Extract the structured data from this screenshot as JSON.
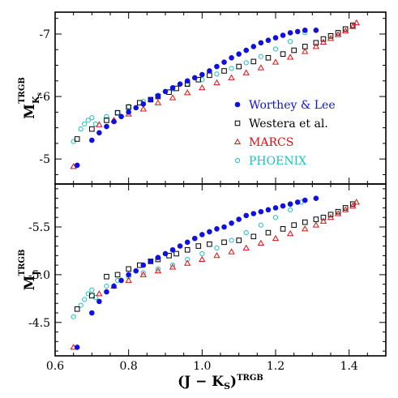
{
  "figure": {
    "xaxis_title": "(J − K",
    "xaxis_sub": "S",
    "xaxis_close": ")",
    "xaxis_sup": "TRGB"
  },
  "chart_data": [
    {
      "type": "scatter",
      "panel": "top",
      "ylabel_main": "M",
      "ylabel_sup": "TRGB",
      "ylabel_sub": "K",
      "ylabel_subsub": "s",
      "xlim": [
        0.6,
        1.5
      ],
      "ylim": [
        -4.6,
        -7.35
      ],
      "y_inverted": true,
      "xticks": [
        0.6,
        0.8,
        1.0,
        1.2,
        1.4
      ],
      "yticks": [
        -5,
        -6,
        -7
      ],
      "ytick_labels": [
        "-5",
        "-6",
        "-7"
      ],
      "grid": false,
      "legend_position": "lower-right",
      "series": [
        {
          "name": "Worthey & Lee",
          "marker": "filled-circle",
          "color": "#1010e0",
          "x": [
            0.66,
            0.7,
            0.72,
            0.74,
            0.76,
            0.78,
            0.8,
            0.82,
            0.84,
            0.86,
            0.88,
            0.9,
            0.92,
            0.94,
            0.96,
            0.98,
            1.0,
            1.02,
            1.04,
            1.06,
            1.08,
            1.1,
            1.12,
            1.14,
            1.16,
            1.18,
            1.2,
            1.22,
            1.24,
            1.26,
            1.28,
            1.31
          ],
          "y": [
            -4.9,
            -5.3,
            -5.42,
            -5.52,
            -5.6,
            -5.68,
            -5.75,
            -5.82,
            -5.88,
            -5.95,
            -6.01,
            -6.08,
            -6.14,
            -6.2,
            -6.25,
            -6.3,
            -6.35,
            -6.41,
            -6.48,
            -6.55,
            -6.62,
            -6.68,
            -6.74,
            -6.8,
            -6.86,
            -6.9,
            -6.94,
            -6.98,
            -7.02,
            -7.04,
            -7.06,
            -7.06
          ]
        },
        {
          "name": "Westera et al.",
          "marker": "open-square",
          "color": "#000000",
          "x": [
            0.66,
            0.7,
            0.74,
            0.77,
            0.8,
            0.83,
            0.86,
            0.88,
            0.91,
            0.93,
            0.96,
            0.99,
            1.02,
            1.06,
            1.1,
            1.14,
            1.18,
            1.22,
            1.25,
            1.28,
            1.31,
            1.33,
            1.35,
            1.37,
            1.39,
            1.41
          ],
          "y": [
            -5.32,
            -5.48,
            -5.62,
            -5.74,
            -5.83,
            -5.9,
            -5.95,
            -6.0,
            -6.07,
            -6.13,
            -6.2,
            -6.27,
            -6.34,
            -6.41,
            -6.48,
            -6.56,
            -6.62,
            -6.68,
            -6.74,
            -6.8,
            -6.86,
            -6.92,
            -6.97,
            -7.02,
            -7.08,
            -7.14
          ]
        },
        {
          "name": "MARCS",
          "marker": "open-triangle",
          "color": "#e01010",
          "x": [
            0.65,
            0.72,
            0.76,
            0.8,
            0.84,
            0.88,
            0.92,
            0.96,
            1.0,
            1.04,
            1.08,
            1.12,
            1.16,
            1.2,
            1.24,
            1.28,
            1.31,
            1.33,
            1.35,
            1.37,
            1.39,
            1.41,
            1.42
          ],
          "y": [
            -4.88,
            -5.55,
            -5.62,
            -5.72,
            -5.8,
            -5.9,
            -5.98,
            -6.06,
            -6.14,
            -6.22,
            -6.3,
            -6.38,
            -6.46,
            -6.55,
            -6.63,
            -6.72,
            -6.8,
            -6.87,
            -6.93,
            -6.99,
            -7.05,
            -7.12,
            -7.18
          ]
        },
        {
          "name": "PHOENIX",
          "marker": "open-circle",
          "color": "#20c0c0",
          "x": [
            0.65,
            0.67,
            0.68,
            0.69,
            0.7,
            0.71,
            0.74,
            0.77,
            0.8,
            0.84,
            0.88,
            0.92,
            0.96,
            1.0,
            1.04,
            1.08,
            1.12,
            1.16,
            1.2,
            1.24,
            1.28
          ],
          "y": [
            -5.28,
            -5.48,
            -5.56,
            -5.62,
            -5.66,
            -5.56,
            -5.68,
            -5.74,
            -5.84,
            -5.92,
            -6.02,
            -6.12,
            -6.2,
            -6.27,
            -6.36,
            -6.45,
            -6.54,
            -6.64,
            -6.76,
            -6.88,
            -7.02
          ]
        }
      ]
    },
    {
      "type": "scatter",
      "panel": "bottom",
      "ylabel_main": "M",
      "ylabel_sup": "TRGB",
      "ylabel_sub": "J",
      "xlim": [
        0.6,
        1.5
      ],
      "ylim": [
        -4.15,
        -5.95
      ],
      "y_inverted": true,
      "xticks": [
        0.6,
        0.8,
        1.0,
        1.2,
        1.4
      ],
      "xtick_labels": [
        "0.6",
        "0.8",
        "1.0",
        "1.2",
        "1.4"
      ],
      "yticks": [
        -4.5,
        -5.0,
        -5.5
      ],
      "ytick_labels": [
        "-4.5",
        "-5.0",
        "-5.5"
      ],
      "grid": false,
      "series": [
        {
          "name": "Worthey & Lee",
          "marker": "filled-circle",
          "color": "#1010e0",
          "x": [
            0.66,
            0.7,
            0.72,
            0.74,
            0.76,
            0.78,
            0.8,
            0.82,
            0.84,
            0.86,
            0.88,
            0.9,
            0.92,
            0.94,
            0.96,
            0.98,
            1.0,
            1.02,
            1.04,
            1.06,
            1.08,
            1.1,
            1.12,
            1.14,
            1.16,
            1.18,
            1.2,
            1.22,
            1.24,
            1.26,
            1.28,
            1.31
          ],
          "y": [
            -4.24,
            -4.6,
            -4.72,
            -4.82,
            -4.88,
            -4.94,
            -5.0,
            -5.04,
            -5.1,
            -5.14,
            -5.18,
            -5.22,
            -5.26,
            -5.3,
            -5.34,
            -5.38,
            -5.42,
            -5.45,
            -5.48,
            -5.5,
            -5.54,
            -5.58,
            -5.62,
            -5.64,
            -5.66,
            -5.68,
            -5.7,
            -5.72,
            -5.74,
            -5.76,
            -5.78,
            -5.8
          ]
        },
        {
          "name": "Westera et al.",
          "marker": "open-square",
          "color": "#000000",
          "x": [
            0.66,
            0.7,
            0.74,
            0.77,
            0.8,
            0.83,
            0.86,
            0.88,
            0.91,
            0.93,
            0.96,
            0.99,
            1.02,
            1.06,
            1.1,
            1.14,
            1.18,
            1.22,
            1.25,
            1.28,
            1.31,
            1.33,
            1.35,
            1.37,
            1.39,
            1.41
          ],
          "y": [
            -4.64,
            -4.78,
            -4.98,
            -5.0,
            -5.06,
            -5.1,
            -5.14,
            -5.16,
            -5.2,
            -5.22,
            -5.26,
            -5.3,
            -5.32,
            -5.34,
            -5.36,
            -5.4,
            -5.44,
            -5.48,
            -5.52,
            -5.55,
            -5.58,
            -5.6,
            -5.63,
            -5.66,
            -5.7,
            -5.74
          ]
        },
        {
          "name": "MARCS",
          "marker": "open-triangle",
          "color": "#e01010",
          "x": [
            0.65,
            0.72,
            0.76,
            0.8,
            0.84,
            0.88,
            0.92,
            0.96,
            1.0,
            1.04,
            1.08,
            1.12,
            1.16,
            1.2,
            1.24,
            1.28,
            1.31,
            1.33,
            1.35,
            1.37,
            1.39,
            1.41,
            1.42
          ],
          "y": [
            -4.24,
            -4.8,
            -4.88,
            -4.94,
            -5.0,
            -5.04,
            -5.08,
            -5.12,
            -5.16,
            -5.2,
            -5.24,
            -5.28,
            -5.33,
            -5.38,
            -5.43,
            -5.48,
            -5.52,
            -5.56,
            -5.6,
            -5.64,
            -5.68,
            -5.72,
            -5.76
          ]
        },
        {
          "name": "PHOENIX",
          "marker": "open-circle",
          "color": "#20c0c0",
          "x": [
            0.65,
            0.67,
            0.68,
            0.69,
            0.7,
            0.71,
            0.74,
            0.77,
            0.8,
            0.84,
            0.88,
            0.92,
            0.96,
            1.0,
            1.04,
            1.08,
            1.12,
            1.16,
            1.2,
            1.24,
            1.27
          ],
          "y": [
            -4.56,
            -4.68,
            -4.74,
            -4.8,
            -4.84,
            -4.76,
            -4.88,
            -4.94,
            -4.98,
            -5.02,
            -5.06,
            -5.1,
            -5.16,
            -5.22,
            -5.28,
            -5.36,
            -5.44,
            -5.52,
            -5.6,
            -5.68,
            -5.76
          ]
        }
      ]
    }
  ]
}
